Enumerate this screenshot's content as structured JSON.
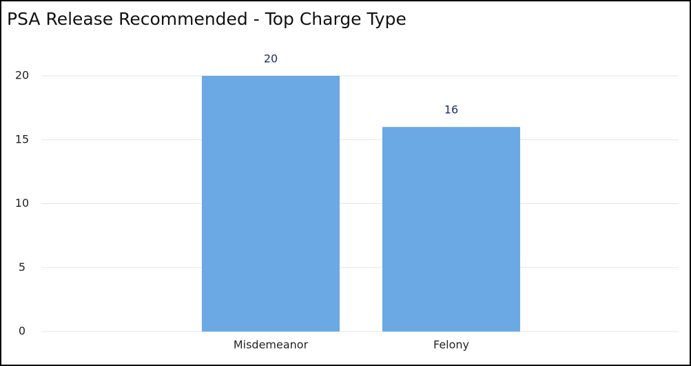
{
  "chart_data": {
    "type": "bar",
    "title": "PSA Release Recommended - Top Charge Type",
    "categories": [
      "Misdemeanor",
      "Felony"
    ],
    "values": [
      20,
      16
    ],
    "color": "#6aa9e4",
    "ylim": [
      0,
      20
    ],
    "yticks": [
      0,
      5,
      10,
      15,
      20
    ],
    "grid": true
  }
}
